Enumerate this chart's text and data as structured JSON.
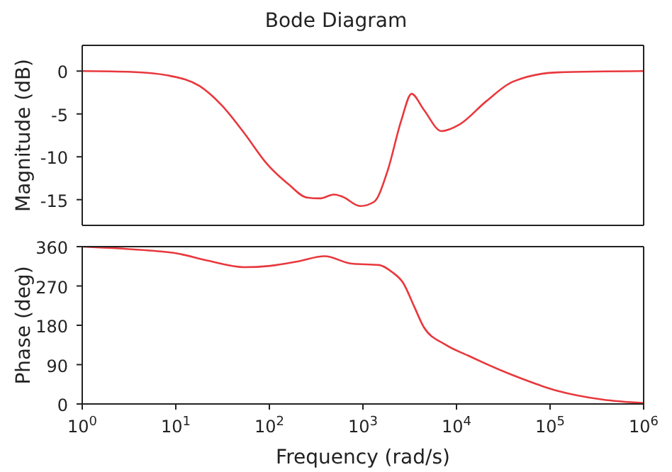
{
  "chart_data": [
    {
      "type": "line",
      "title": "Bode Diagram",
      "ylabel": "Magnitude (dB)",
      "log": "x",
      "xlim": [
        1,
        1000000
      ],
      "xticks": [
        {
          "value": 1,
          "label": null
        },
        {
          "value": 10,
          "label": null
        },
        {
          "value": 100,
          "label": null
        },
        {
          "value": 1000,
          "label": null
        },
        {
          "value": 10000,
          "label": null
        },
        {
          "value": 100000,
          "label": null
        },
        {
          "value": 1000000,
          "label": null
        }
      ],
      "ylim": [
        -18,
        3
      ],
      "yticks": [
        -15,
        -10,
        -5,
        0
      ],
      "tick_labels": "y",
      "marker": "none",
      "line_style": "solid",
      "series": [
        {
          "color": "#e8383d",
          "x": [
            1,
            3.4,
            8.1,
            18,
            31,
            54,
            93,
            162,
            251,
            347,
            490,
            603,
            933,
            1318,
            1820,
            2570,
            3311,
            4467,
            6918,
            10700,
            20900,
            39800,
            120000,
            1000000
          ],
          "values": [
            0,
            -0.1,
            -0.5,
            -1.75,
            -4,
            -7.25,
            -10.75,
            -13.25,
            -14.75,
            -14.85,
            -14.4,
            -14.65,
            -15.75,
            -15.25,
            -11.75,
            -5.75,
            -2.65,
            -4.5,
            -7,
            -6.25,
            -3.5,
            -1.25,
            -0.15,
            0
          ]
        }
      ]
    },
    {
      "type": "line",
      "xlabel": "Frequency  (rad/s)",
      "ylabel": "Phase (deg)",
      "log": "x",
      "xlim": [
        1,
        1000000
      ],
      "xticks": [
        {
          "value": 1,
          "label": "10$^{0}$"
        },
        {
          "value": 10,
          "label": "10$^{1}$"
        },
        {
          "value": 100,
          "label": "10$^{2}$"
        },
        {
          "value": 1000,
          "label": "10$^{3}$"
        },
        {
          "value": 10000,
          "label": "10$^{4}$"
        },
        {
          "value": 100000,
          "label": "10$^{5}$"
        },
        {
          "value": 1000000,
          "label": "10$^{6}$"
        }
      ],
      "ylim": [
        0,
        360
      ],
      "yticks": [
        0,
        90,
        180,
        270,
        360
      ],
      "marker": "none",
      "line_style": "solid",
      "series": [
        {
          "color": "#e8383d",
          "x": [
            1,
            5.2,
            10,
            22,
            54,
            102,
            200,
            389,
            759,
            1479,
            2042,
            2692,
            3548,
            4467,
            7586,
            13200,
            39800,
            120000,
            363000,
            1000000
          ],
          "values": [
            360,
            351,
            345,
            328,
            313,
            316,
            326,
            338,
            321,
            318,
            302,
            277,
            222,
            176,
            136,
            111,
            66,
            30,
            10,
            2
          ]
        }
      ]
    }
  ]
}
